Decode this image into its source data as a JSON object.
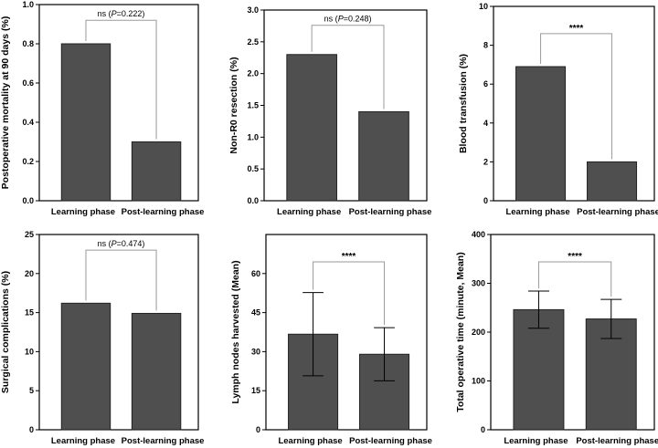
{
  "colors": {
    "bar": "#4f4f4f",
    "axis": "#000000",
    "bracket": "#9a9a9a",
    "background": "#ffffff"
  },
  "chart_data": [
    {
      "type": "bar",
      "categories": [
        "Learning phase",
        "Post-learning phase"
      ],
      "values": [
        0.8,
        0.3
      ],
      "ylabel": "Postoperative mortality at 90 days (%)",
      "ylim": [
        0,
        1.0
      ],
      "yticks": [
        "0.0",
        "0.2",
        "0.4",
        "0.6",
        "0.8",
        "1.0"
      ],
      "significance": {
        "text": "ns (P=0.222)",
        "prefix": "ns (",
        "p_symbol": "P",
        "p_value": "=0.222)"
      },
      "grid": false
    },
    {
      "type": "bar",
      "categories": [
        "Learning phase",
        "Post-learning phase"
      ],
      "values": [
        2.3,
        1.4
      ],
      "ylabel": "Non-R0 resection (%)",
      "ylim": [
        0,
        3.0
      ],
      "yticks": [
        "0.0",
        "0.5",
        "1.0",
        "1.5",
        "2.0",
        "2.5",
        "3.0"
      ],
      "significance": {
        "text": "ns (P=0.248)",
        "prefix": "ns (",
        "p_symbol": "P",
        "p_value": "=0.248)"
      },
      "grid": false
    },
    {
      "type": "bar",
      "categories": [
        "Learning phase",
        "Post-learning phase"
      ],
      "values": [
        6.9,
        2.0
      ],
      "ylabel": "Blood transfusion (%)",
      "ylim": [
        0,
        10
      ],
      "yticks": [
        "0",
        "2",
        "4",
        "6",
        "8",
        "10"
      ],
      "significance": {
        "text": "****"
      },
      "grid": false
    },
    {
      "type": "bar",
      "categories": [
        "Learning phase",
        "Post-learning phase"
      ],
      "values": [
        16.2,
        14.9
      ],
      "ylabel": "Surgical complications (%)",
      "ylim": [
        0,
        25
      ],
      "yticks": [
        "0",
        "5",
        "10",
        "15",
        "20",
        "25"
      ],
      "significance": {
        "text": "ns (P=0.474)",
        "prefix": "ns (",
        "p_symbol": "P",
        "p_value": "=0.474)"
      },
      "grid": false
    },
    {
      "type": "bar",
      "categories": [
        "Learning phase",
        "Post-learning phase"
      ],
      "values": [
        36.7,
        29.0
      ],
      "error": [
        16.0,
        10.2
      ],
      "ylabel": "Lymph nodes harvested (Mean)",
      "ylim": [
        0,
        75
      ],
      "yticks": [
        "0",
        "15",
        "30",
        "45",
        "60"
      ],
      "significance": {
        "text": "****"
      },
      "grid": false
    },
    {
      "type": "bar",
      "categories": [
        "Learning phase",
        "Post-learning phase"
      ],
      "values": [
        246,
        227
      ],
      "error": [
        38,
        40
      ],
      "ylabel": "Total operative time (minute, Mean)",
      "ylim": [
        0,
        400
      ],
      "yticks": [
        "0",
        "100",
        "200",
        "300",
        "400"
      ],
      "significance": {
        "text": "****"
      },
      "grid": false
    }
  ]
}
